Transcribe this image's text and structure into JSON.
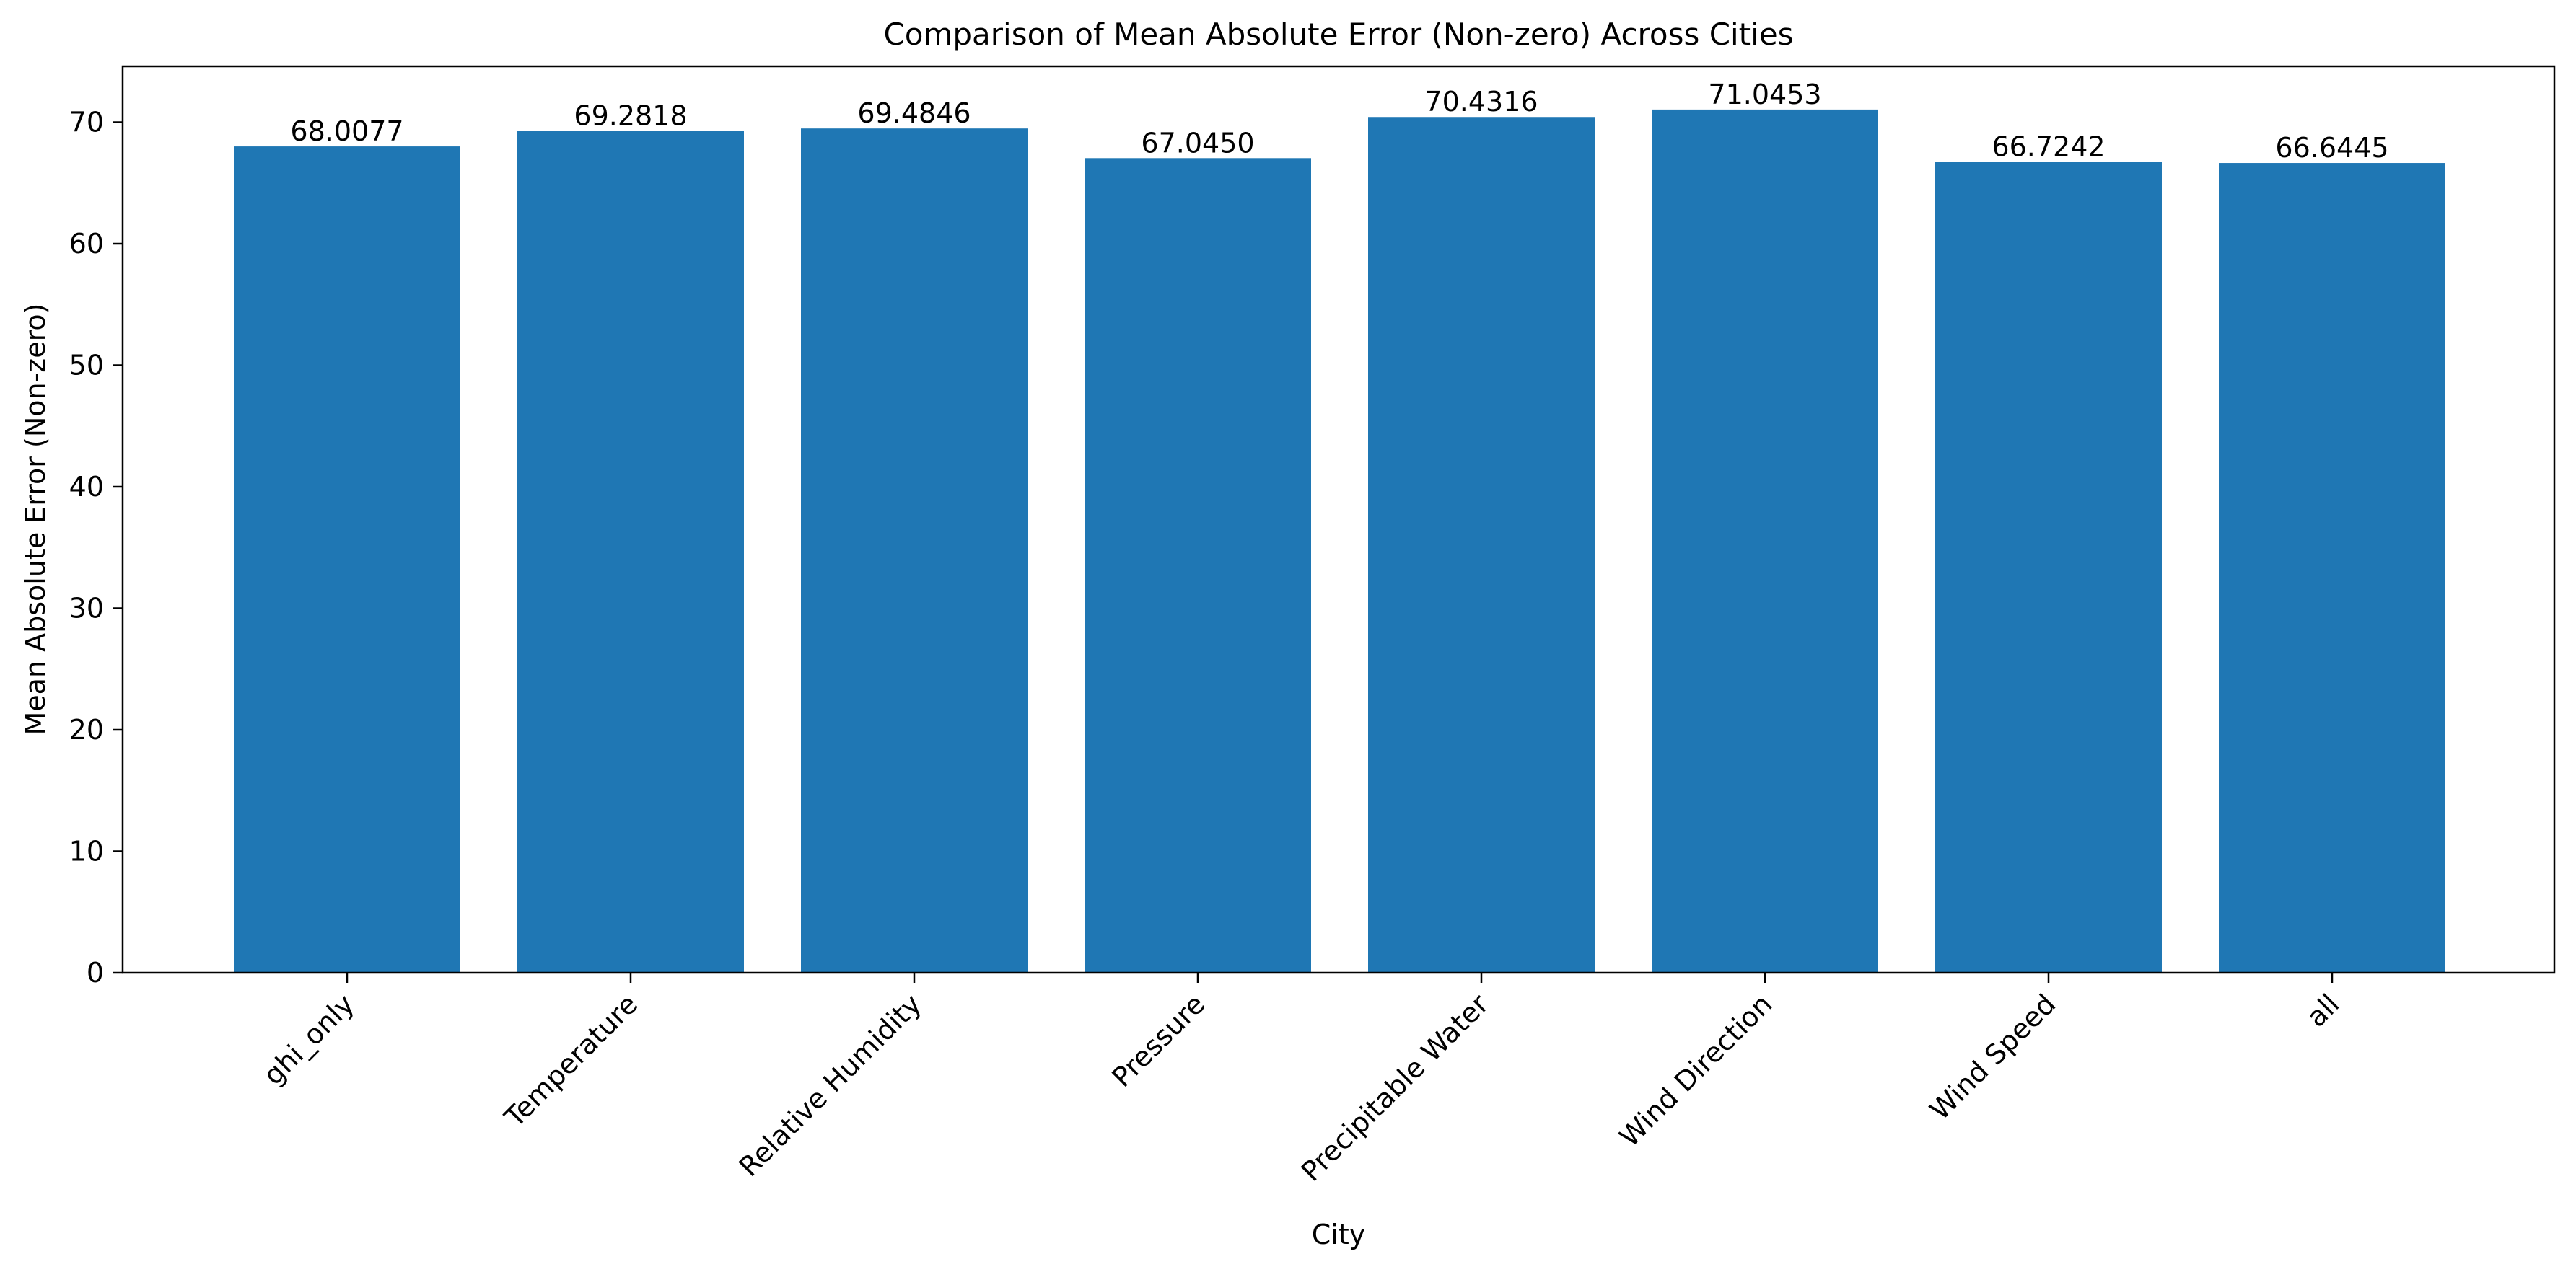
{
  "chart_data": {
    "type": "bar",
    "title": "Comparison of Mean Absolute Error (Non-zero) Across Cities",
    "xlabel": "City",
    "ylabel": "Mean Absolute Error (Non-zero)",
    "categories": [
      "ghi_only",
      "Temperature",
      "Relative Humidity",
      "Pressure",
      "Precipitable Water",
      "Wind Direction",
      "Wind Speed",
      "all"
    ],
    "values": [
      68.0077,
      69.2818,
      69.4846,
      67.045,
      70.4316,
      71.0453,
      66.7242,
      66.6445
    ],
    "value_labels": [
      "68.0077",
      "69.2818",
      "69.4846",
      "67.0450",
      "70.4316",
      "71.0453",
      "66.7242",
      "66.6445"
    ],
    "ylim": [
      0,
      74.6
    ],
    "yticks": [
      0,
      10,
      20,
      30,
      40,
      50,
      60,
      70
    ],
    "grid": false,
    "bar_color": "#1f77b4"
  }
}
